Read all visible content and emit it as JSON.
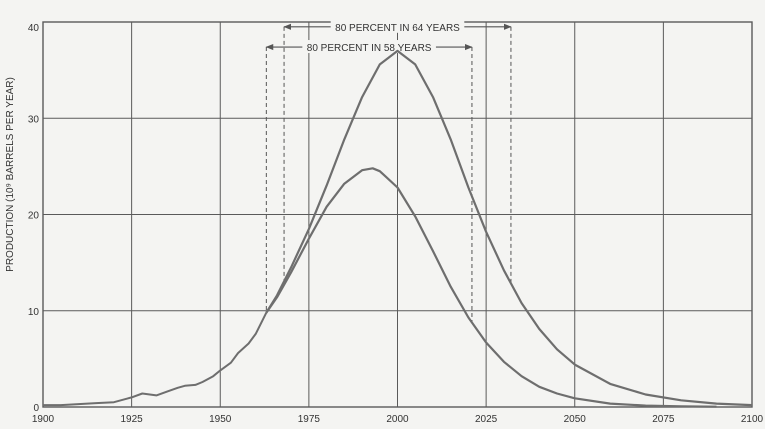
{
  "chart_data": {
    "type": "line",
    "title": "",
    "xlabel": "",
    "ylabel": "PRODUCTION (10⁹ BARRELS PER YEAR)",
    "xlim": [
      1900,
      2100
    ],
    "ylim": [
      0,
      40
    ],
    "grid": true,
    "x_ticks": [
      1900,
      1925,
      1950,
      1975,
      2000,
      2025,
      2050,
      2075,
      2100
    ],
    "x_tick_labels": [
      "1900",
      "1925",
      "1950",
      "1975",
      "2000",
      "2025",
      "2050",
      "2075",
      "2100"
    ],
    "y_ticks": [
      0,
      10,
      20,
      30,
      40
    ],
    "y_tick_labels": [
      "0",
      "10",
      "20",
      "30",
      "40"
    ],
    "historical": {
      "x": [
        1900,
        1905,
        1910,
        1915,
        1920,
        1925,
        1928,
        1932,
        1935,
        1938,
        1940,
        1943,
        1945,
        1948,
        1950,
        1953,
        1955,
        1958,
        1960,
        1963
      ],
      "y": [
        0.2,
        0.2,
        0.3,
        0.4,
        0.5,
        1.0,
        1.4,
        1.2,
        1.6,
        2.0,
        2.2,
        2.3,
        2.6,
        3.2,
        3.8,
        4.6,
        5.6,
        6.6,
        7.6,
        9.8
      ]
    },
    "series": [
      {
        "x": [
          1963,
          1966,
          1970,
          1975,
          1980,
          1985,
          1990,
          1995,
          2000,
          2005,
          2010,
          2015,
          2020,
          2025,
          2030,
          2035,
          2040,
          2045,
          2050,
          2060,
          2070,
          2080,
          2090,
          2100
        ],
        "values": [
          9.8,
          11.6,
          14.5,
          18.5,
          23.0,
          27.8,
          32.2,
          35.6,
          37.0,
          35.6,
          32.2,
          27.8,
          22.8,
          18.2,
          14.2,
          10.8,
          8.1,
          6.0,
          4.4,
          2.4,
          1.3,
          0.7,
          0.35,
          0.2
        ]
      },
      {
        "x": [
          1963,
          1966,
          1970,
          1975,
          1980,
          1985,
          1990,
          1993,
          1995,
          2000,
          2005,
          2010,
          2015,
          2020,
          2025,
          2030,
          2035,
          2040,
          2045,
          2050,
          2060,
          2070,
          2080,
          2090
        ],
        "values": [
          9.8,
          11.4,
          14.0,
          17.5,
          20.8,
          23.2,
          24.6,
          24.8,
          24.5,
          22.8,
          19.8,
          16.2,
          12.5,
          9.3,
          6.7,
          4.7,
          3.2,
          2.1,
          1.4,
          0.9,
          0.35,
          0.15,
          0.07,
          0.03
        ]
      }
    ],
    "annotations": [
      {
        "text": "80 PERCENT IN 64 YEARS",
        "x_start": 1968,
        "x_end": 2032,
        "y": 39.5
      },
      {
        "text": "80 PERCENT IN 58 YEARS",
        "x_start": 1963,
        "x_end": 2021,
        "y": 37.4
      }
    ],
    "colors": {
      "line": "#6e6e6e",
      "grid": "#5a5a5a",
      "text": "#333333",
      "dashed": "#555555"
    }
  }
}
